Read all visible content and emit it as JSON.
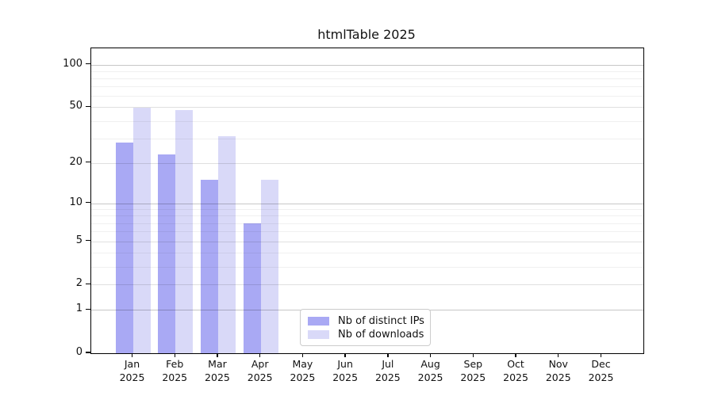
{
  "title": "htmlTable 2025",
  "chart_data": {
    "type": "bar",
    "title": "htmlTable 2025",
    "xlabel": "",
    "ylabel": "",
    "y_scale": "log1p",
    "ylim": [
      0,
      130
    ],
    "y_ticks": [
      0,
      1,
      2,
      5,
      10,
      20,
      50,
      100
    ],
    "gridlines": {
      "major": [
        1,
        10,
        100
      ],
      "mid": [
        2,
        5,
        20,
        50
      ],
      "minor": [
        3,
        4,
        6,
        7,
        8,
        9,
        30,
        40,
        60,
        70,
        80,
        90
      ]
    },
    "year": "2025",
    "categories": [
      "Jan",
      "Feb",
      "Mar",
      "Apr",
      "May",
      "Jun",
      "Jul",
      "Aug",
      "Sep",
      "Oct",
      "Nov",
      "Dec"
    ],
    "series": [
      {
        "name": "Nb of distinct IPs",
        "color": "#a9a9f4",
        "values": [
          28,
          23,
          15,
          7,
          null,
          null,
          null,
          null,
          null,
          null,
          null,
          null
        ]
      },
      {
        "name": "Nb of downloads",
        "color": "#d9d9f8",
        "values": [
          50,
          48,
          31,
          15,
          null,
          null,
          null,
          null,
          null,
          null,
          null,
          null
        ]
      }
    ],
    "legend_position": "lower center-left inside plot"
  }
}
